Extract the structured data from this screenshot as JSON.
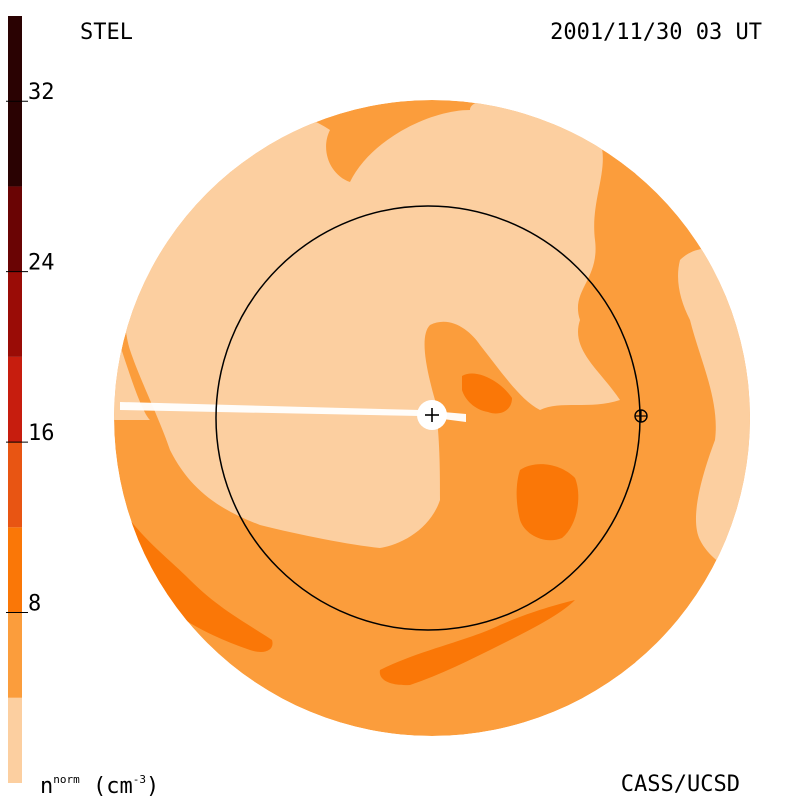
{
  "header": {
    "observatory": "STEL",
    "timestamp": "2001/11/30 03 UT"
  },
  "footer": {
    "credit": "CASS/UCSD"
  },
  "colorbar": {
    "label_base": "n",
    "label_sup": "norm",
    "label_units_open": " (cm",
    "label_units_sup": "-3",
    "label_units_close": ")",
    "ticks": [
      "8",
      "16",
      "24",
      "32"
    ],
    "steps": [
      "#fccfa0",
      "#fb9d3c",
      "#fa7707",
      "#e85513",
      "#c71d0e",
      "#9a0c06",
      "#6a0404",
      "#2a0202"
    ]
  },
  "chart_data": {
    "type": "heatmap",
    "title": "",
    "quantity": "normalized density",
    "units": "cm^-3",
    "color_scale": {
      "min": 0,
      "max": 36,
      "step": 4,
      "ticks": [
        8,
        16,
        24,
        32
      ],
      "levels": [
        {
          "range": [
            0,
            4
          ],
          "color": "#fccfa0"
        },
        {
          "range": [
            4,
            8
          ],
          "color": "#fb9d3c"
        },
        {
          "range": [
            8,
            12
          ],
          "color": "#fa7707"
        },
        {
          "range": [
            12,
            16
          ],
          "color": "#e85513"
        },
        {
          "range": [
            16,
            20
          ],
          "color": "#c71d0e"
        },
        {
          "range": [
            20,
            24
          ],
          "color": "#9a0c06"
        },
        {
          "range": [
            24,
            28
          ],
          "color": "#6a0404"
        },
        {
          "range": [
            28,
            36
          ],
          "color": "#2a0202"
        }
      ]
    },
    "grid": false,
    "markers": [
      "sun (+) at center",
      "earth (⊕) on orbit circle"
    ]
  }
}
